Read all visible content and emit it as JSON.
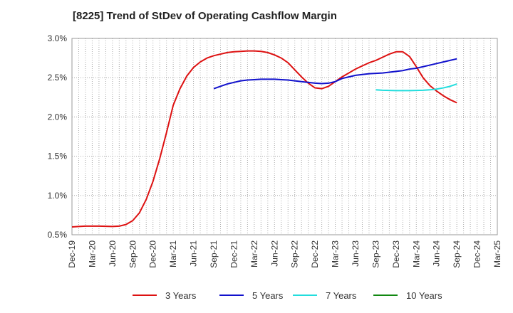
{
  "chart_data": {
    "type": "line",
    "title": "[8225]  Trend of StDev of Operating Cashflow Margin",
    "xlabel": "",
    "ylabel": "",
    "x_ticks": [
      "Dec-19",
      "Mar-20",
      "Jun-20",
      "Sep-20",
      "Dec-20",
      "Mar-21",
      "Jun-21",
      "Sep-21",
      "Dec-21",
      "Mar-22",
      "Jun-22",
      "Sep-22",
      "Dec-22",
      "Mar-23",
      "Jun-23",
      "Sep-23",
      "Dec-23",
      "Mar-24",
      "Jun-24",
      "Sep-24",
      "Dec-24",
      "Mar-25"
    ],
    "y_ticks": [
      "0.5%",
      "1.0%",
      "1.5%",
      "2.0%",
      "2.5%",
      "3.0%"
    ],
    "ylim": [
      0.5,
      3.0
    ],
    "grid": true,
    "legend_position": "bottom",
    "series": [
      {
        "name": "3 Years",
        "color": "#dd1111",
        "points": [
          [
            "Dec-19",
            0.6
          ],
          [
            "Jan-20",
            0.605
          ],
          [
            "Feb-20",
            0.61
          ],
          [
            "Mar-20",
            0.61
          ],
          [
            "Apr-20",
            0.61
          ],
          [
            "May-20",
            0.608
          ],
          [
            "Jun-20",
            0.605
          ],
          [
            "Jul-20",
            0.61
          ],
          [
            "Aug-20",
            0.63
          ],
          [
            "Sep-20",
            0.68
          ],
          [
            "Oct-20",
            0.78
          ],
          [
            "Nov-20",
            0.95
          ],
          [
            "Dec-20",
            1.18
          ],
          [
            "Jan-21",
            1.47
          ],
          [
            "Feb-21",
            1.8
          ],
          [
            "Mar-21",
            2.15
          ],
          [
            "Apr-21",
            2.36
          ],
          [
            "May-21",
            2.52
          ],
          [
            "Jun-21",
            2.63
          ],
          [
            "Jul-21",
            2.7
          ],
          [
            "Aug-21",
            2.75
          ],
          [
            "Sep-21",
            2.78
          ],
          [
            "Oct-21",
            2.8
          ],
          [
            "Nov-21",
            2.82
          ],
          [
            "Dec-21",
            2.83
          ],
          [
            "Jan-22",
            2.835
          ],
          [
            "Feb-22",
            2.84
          ],
          [
            "Mar-22",
            2.84
          ],
          [
            "Apr-22",
            2.835
          ],
          [
            "May-22",
            2.82
          ],
          [
            "Jun-22",
            2.79
          ],
          [
            "Jul-22",
            2.75
          ],
          [
            "Aug-22",
            2.69
          ],
          [
            "Sep-22",
            2.6
          ],
          [
            "Oct-22",
            2.51
          ],
          [
            "Nov-22",
            2.43
          ],
          [
            "Dec-22",
            2.37
          ],
          [
            "Jan-23",
            2.36
          ],
          [
            "Feb-23",
            2.39
          ],
          [
            "Mar-23",
            2.45
          ],
          [
            "Apr-23",
            2.51
          ],
          [
            "May-23",
            2.56
          ],
          [
            "Jun-23",
            2.61
          ],
          [
            "Jul-23",
            2.65
          ],
          [
            "Aug-23",
            2.69
          ],
          [
            "Sep-23",
            2.72
          ],
          [
            "Oct-23",
            2.76
          ],
          [
            "Nov-23",
            2.8
          ],
          [
            "Dec-23",
            2.83
          ],
          [
            "Jan-24",
            2.83
          ],
          [
            "Feb-24",
            2.77
          ],
          [
            "Mar-24",
            2.64
          ],
          [
            "Apr-24",
            2.5
          ],
          [
            "May-24",
            2.4
          ],
          [
            "Jun-24",
            2.33
          ],
          [
            "Jul-24",
            2.27
          ],
          [
            "Aug-24",
            2.22
          ],
          [
            "Sep-24",
            2.18
          ]
        ]
      },
      {
        "name": "5 Years",
        "color": "#1111cc",
        "points": [
          [
            "Sep-21",
            2.36
          ],
          [
            "Oct-21",
            2.39
          ],
          [
            "Nov-21",
            2.42
          ],
          [
            "Dec-21",
            2.44
          ],
          [
            "Jan-22",
            2.46
          ],
          [
            "Feb-22",
            2.47
          ],
          [
            "Mar-22",
            2.475
          ],
          [
            "Apr-22",
            2.48
          ],
          [
            "May-22",
            2.48
          ],
          [
            "Jun-22",
            2.48
          ],
          [
            "Jul-22",
            2.475
          ],
          [
            "Aug-22",
            2.47
          ],
          [
            "Sep-22",
            2.46
          ],
          [
            "Oct-22",
            2.45
          ],
          [
            "Nov-22",
            2.44
          ],
          [
            "Dec-22",
            2.43
          ],
          [
            "Jan-23",
            2.425
          ],
          [
            "Feb-23",
            2.43
          ],
          [
            "Mar-23",
            2.45
          ],
          [
            "Apr-23",
            2.49
          ],
          [
            "May-23",
            2.51
          ],
          [
            "Jun-23",
            2.53
          ],
          [
            "Jul-23",
            2.54
          ],
          [
            "Aug-23",
            2.55
          ],
          [
            "Sep-23",
            2.555
          ],
          [
            "Oct-23",
            2.56
          ],
          [
            "Nov-23",
            2.57
          ],
          [
            "Dec-23",
            2.58
          ],
          [
            "Jan-24",
            2.59
          ],
          [
            "Feb-24",
            2.61
          ],
          [
            "Mar-24",
            2.62
          ],
          [
            "Apr-24",
            2.64
          ],
          [
            "May-24",
            2.66
          ],
          [
            "Jun-24",
            2.68
          ],
          [
            "Jul-24",
            2.7
          ],
          [
            "Aug-24",
            2.72
          ],
          [
            "Sep-24",
            2.74
          ]
        ]
      },
      {
        "name": "7 Years",
        "color": "#22dddd",
        "points": [
          [
            "Sep-23",
            2.345
          ],
          [
            "Oct-23",
            2.34
          ],
          [
            "Nov-23",
            2.338
          ],
          [
            "Dec-23",
            2.335
          ],
          [
            "Jan-24",
            2.335
          ],
          [
            "Feb-24",
            2.335
          ],
          [
            "Mar-24",
            2.338
          ],
          [
            "Apr-24",
            2.34
          ],
          [
            "May-24",
            2.345
          ],
          [
            "Jun-24",
            2.355
          ],
          [
            "Jul-24",
            2.37
          ],
          [
            "Aug-24",
            2.39
          ],
          [
            "Sep-24",
            2.42
          ]
        ]
      },
      {
        "name": "10 Years",
        "color": "#118811",
        "points": []
      }
    ]
  }
}
